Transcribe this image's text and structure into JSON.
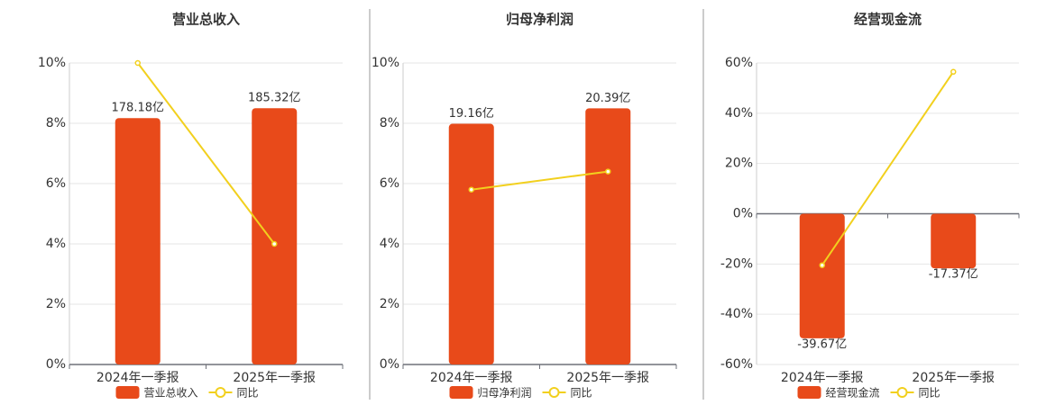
{
  "chart_data": [
    {
      "type": "bar",
      "title": "营业总收入",
      "categories": [
        "2024年一季报",
        "2025年一季报"
      ],
      "series": [
        {
          "name": "营业总收入",
          "color": "#e84a1a",
          "values": [
            178.18,
            185.32
          ],
          "value_labels": [
            "178.18亿",
            "185.32亿"
          ],
          "axis": "y2"
        },
        {
          "name": "同比",
          "type": "line",
          "color": "#f2d01e",
          "values": [
            10,
            4
          ]
        }
      ],
      "ylim": [
        0,
        10
      ],
      "yticks": [
        {
          "value": 0,
          "label": "0%"
        },
        {
          "value": 2,
          "label": "2%"
        },
        {
          "value": 4,
          "label": "4%"
        },
        {
          "value": 6,
          "label": "6%"
        },
        {
          "value": 8,
          "label": "8%"
        },
        {
          "value": 10,
          "label": "10%"
        }
      ],
      "y2lim": [
        0,
        218
      ],
      "grid": true
    },
    {
      "type": "bar",
      "title": "归母净利润",
      "categories": [
        "2024年一季报",
        "2025年一季报"
      ],
      "series": [
        {
          "name": "归母净利润",
          "color": "#e84a1a",
          "values": [
            19.16,
            20.39
          ],
          "value_labels": [
            "19.16亿",
            "20.39亿"
          ],
          "axis": "y2"
        },
        {
          "name": "同比",
          "type": "line",
          "color": "#f2d01e",
          "values": [
            5.8,
            6.4
          ]
        }
      ],
      "ylim": [
        0,
        10
      ],
      "yticks": [
        {
          "value": 0,
          "label": "0%"
        },
        {
          "value": 2,
          "label": "2%"
        },
        {
          "value": 4,
          "label": "4%"
        },
        {
          "value": 6,
          "label": "6%"
        },
        {
          "value": 8,
          "label": "8%"
        },
        {
          "value": 10,
          "label": "10%"
        }
      ],
      "y2lim": [
        0,
        24
      ],
      "grid": true
    },
    {
      "type": "bar",
      "title": "经营现金流",
      "categories": [
        "2024年一季报",
        "2025年一季报"
      ],
      "series": [
        {
          "name": "经营现金流",
          "color": "#e84a1a",
          "values": [
            -39.67,
            -17.37
          ],
          "value_labels": [
            "-39.67亿",
            "-17.37亿"
          ],
          "axis": "y2"
        },
        {
          "name": "同比",
          "type": "line",
          "color": "#f2d01e",
          "values": [
            -20.5,
            56.5
          ]
        }
      ],
      "ylim": [
        -60,
        60
      ],
      "yticks": [
        {
          "value": -60,
          "label": "-60%"
        },
        {
          "value": -40,
          "label": "-40%"
        },
        {
          "value": -20,
          "label": "-20%"
        },
        {
          "value": 0,
          "label": "0%"
        },
        {
          "value": 20,
          "label": "20%"
        },
        {
          "value": 40,
          "label": "40%"
        },
        {
          "value": 60,
          "label": "60%"
        }
      ],
      "y2lim": [
        -48,
        48
      ],
      "grid": true
    }
  ]
}
